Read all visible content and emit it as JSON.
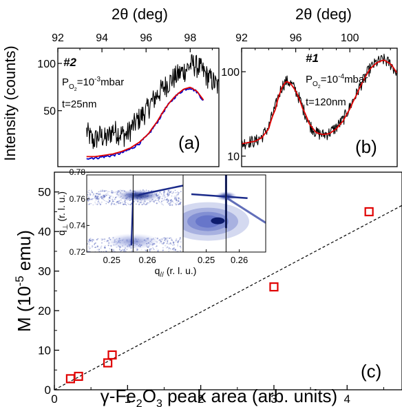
{
  "chart_data": [
    {
      "id": "a",
      "type": "line",
      "panel_label": "(a)",
      "sample_label": "#2",
      "xlabel_top": "2θ (deg)",
      "ylabel": "Intensity (counts)",
      "y_scale": "log",
      "xlim": [
        92,
        99.3
      ],
      "ylim": [
        22,
        125
      ],
      "x_ticks": [
        92,
        94,
        96,
        98
      ],
      "y_ticks": [
        50,
        100
      ],
      "annotation_pressure": {
        "prefix": "P",
        "sub": "O",
        "sub2": "2",
        "eq": "=10",
        "exp": "-3",
        "unit": "mbar"
      },
      "annotation_thickness": "t=25nm",
      "series": [
        {
          "role": "data",
          "color": "#000000",
          "x": [
            93.3,
            93.6,
            93.9,
            94.2,
            94.5,
            94.8,
            95.1,
            95.4,
            95.7,
            96.0,
            96.3,
            96.6,
            96.9,
            97.2,
            97.5,
            97.8,
            98.1,
            98.4,
            98.7,
            99.0,
            99.3
          ],
          "y": [
            37,
            32,
            35,
            33,
            38,
            36,
            35,
            40,
            45,
            50,
            58,
            66,
            73,
            80,
            86,
            92,
            100,
            95,
            85,
            78,
            70
          ]
        },
        {
          "role": "fit",
          "color": "#0000cc",
          "x": [
            93.3,
            93.7,
            94.1,
            94.5,
            94.9,
            95.3,
            95.7,
            96.1,
            96.5,
            96.9,
            97.3,
            97.7,
            98.0,
            98.3,
            98.6
          ],
          "y": [
            25,
            25,
            25.5,
            26,
            27,
            28.5,
            31,
            35,
            42,
            52,
            61,
            68,
            70,
            66,
            58
          ]
        },
        {
          "role": "fit",
          "color": "#e00000",
          "x": [
            93.3,
            93.7,
            94.1,
            94.5,
            94.9,
            95.3,
            95.7,
            96.1,
            96.5,
            96.9,
            97.3,
            97.7,
            98.0,
            98.3,
            98.6
          ],
          "y": [
            25.5,
            25.5,
            26,
            26.5,
            27.5,
            29,
            31.5,
            35.5,
            42.5,
            52.5,
            61.5,
            68.5,
            70.5,
            66.5,
            58.5
          ]
        }
      ]
    },
    {
      "id": "b",
      "type": "line",
      "panel_label": "(b)",
      "sample_label": "#1",
      "xlabel_top": "2θ (deg)",
      "y_scale": "log",
      "xlim": [
        92,
        103.5
      ],
      "ylim": [
        7.5,
        190
      ],
      "x_ticks": [
        92,
        96,
        100
      ],
      "y_ticks": [
        10,
        100
      ],
      "annotation_pressure": {
        "prefix": "P",
        "sub": "O",
        "sub2": "2",
        "eq": "=10",
        "exp": "-4",
        "unit": "mbar"
      },
      "annotation_thickness": "t=120nm",
      "series": [
        {
          "role": "data",
          "color": "#000000",
          "x": [
            92.0,
            92.5,
            93.0,
            93.5,
            94.0,
            94.5,
            95.0,
            95.3,
            95.6,
            96.0,
            96.5,
            97.0,
            97.5,
            98.0,
            98.5,
            99.0,
            99.5,
            100.0,
            100.5,
            101.0,
            101.5,
            102.0,
            102.5,
            103.0,
            103.5
          ],
          "y": [
            14,
            15,
            15,
            17,
            22,
            38,
            68,
            78,
            74,
            60,
            38,
            24,
            19,
            18,
            19,
            22,
            27,
            38,
            55,
            80,
            110,
            130,
            140,
            125,
            95
          ]
        },
        {
          "role": "fit",
          "color": "#e00000",
          "x": [
            92.0,
            92.5,
            93.0,
            93.5,
            94.0,
            94.5,
            95.0,
            95.3,
            95.6,
            96.0,
            96.5,
            97.0,
            97.5,
            98.0,
            98.5,
            99.0,
            99.5,
            100.0,
            100.5,
            101.0,
            101.5,
            102.0,
            102.5,
            103.0,
            103.5
          ],
          "y": [
            14,
            14.5,
            15,
            16.5,
            21,
            36,
            66,
            77,
            73,
            59,
            37,
            24,
            19,
            18,
            18.5,
            21,
            26,
            36,
            53,
            78,
            108,
            128,
            138,
            124,
            96
          ]
        }
      ]
    },
    {
      "id": "c",
      "type": "scatter",
      "panel_label": "(c)",
      "xlabel": "γ-Fe₂O₃ peak area (arb. units)",
      "ylabel": "M (10⁻⁵ emu)",
      "xlim": [
        0,
        4.75
      ],
      "ylim": [
        0,
        55
      ],
      "x_ticks": [
        0,
        1,
        2,
        3,
        4
      ],
      "y_ticks": [
        0,
        10,
        20,
        30,
        40,
        50
      ],
      "marker_color": "#e00000",
      "points": [
        {
          "x": 0.22,
          "y": 2.8
        },
        {
          "x": 0.33,
          "y": 3.4
        },
        {
          "x": 0.73,
          "y": 6.8
        },
        {
          "x": 0.79,
          "y": 8.8
        },
        {
          "x": 3.0,
          "y": 26.0
        },
        {
          "x": 4.3,
          "y": 45.0
        }
      ],
      "fit_line": {
        "style": "dashed",
        "x": [
          0,
          4.75
        ],
        "y": [
          0,
          46.6
        ]
      }
    },
    {
      "id": "c-inset",
      "type": "heatmap",
      "xlabel": "q// (r. l. u.)",
      "ylabel": "q⊥ (r. l. u.)",
      "xlim": [
        0.243,
        0.27
      ],
      "ylim": [
        0.72,
        0.778
      ],
      "x_ticks": [
        0.25,
        0.26
      ],
      "y_ticks": [
        0.72,
        0.74,
        0.76,
        0.78
      ],
      "maps": [
        {
          "reference_x": 0.256,
          "peak": {
            "x": 0.256,
            "y": 0.763
          }
        },
        {
          "reference_x": 0.256,
          "peak": {
            "x": 0.256,
            "y": 0.762
          },
          "diffuse": {
            "x": 0.253,
            "y": 0.743
          }
        }
      ]
    }
  ]
}
